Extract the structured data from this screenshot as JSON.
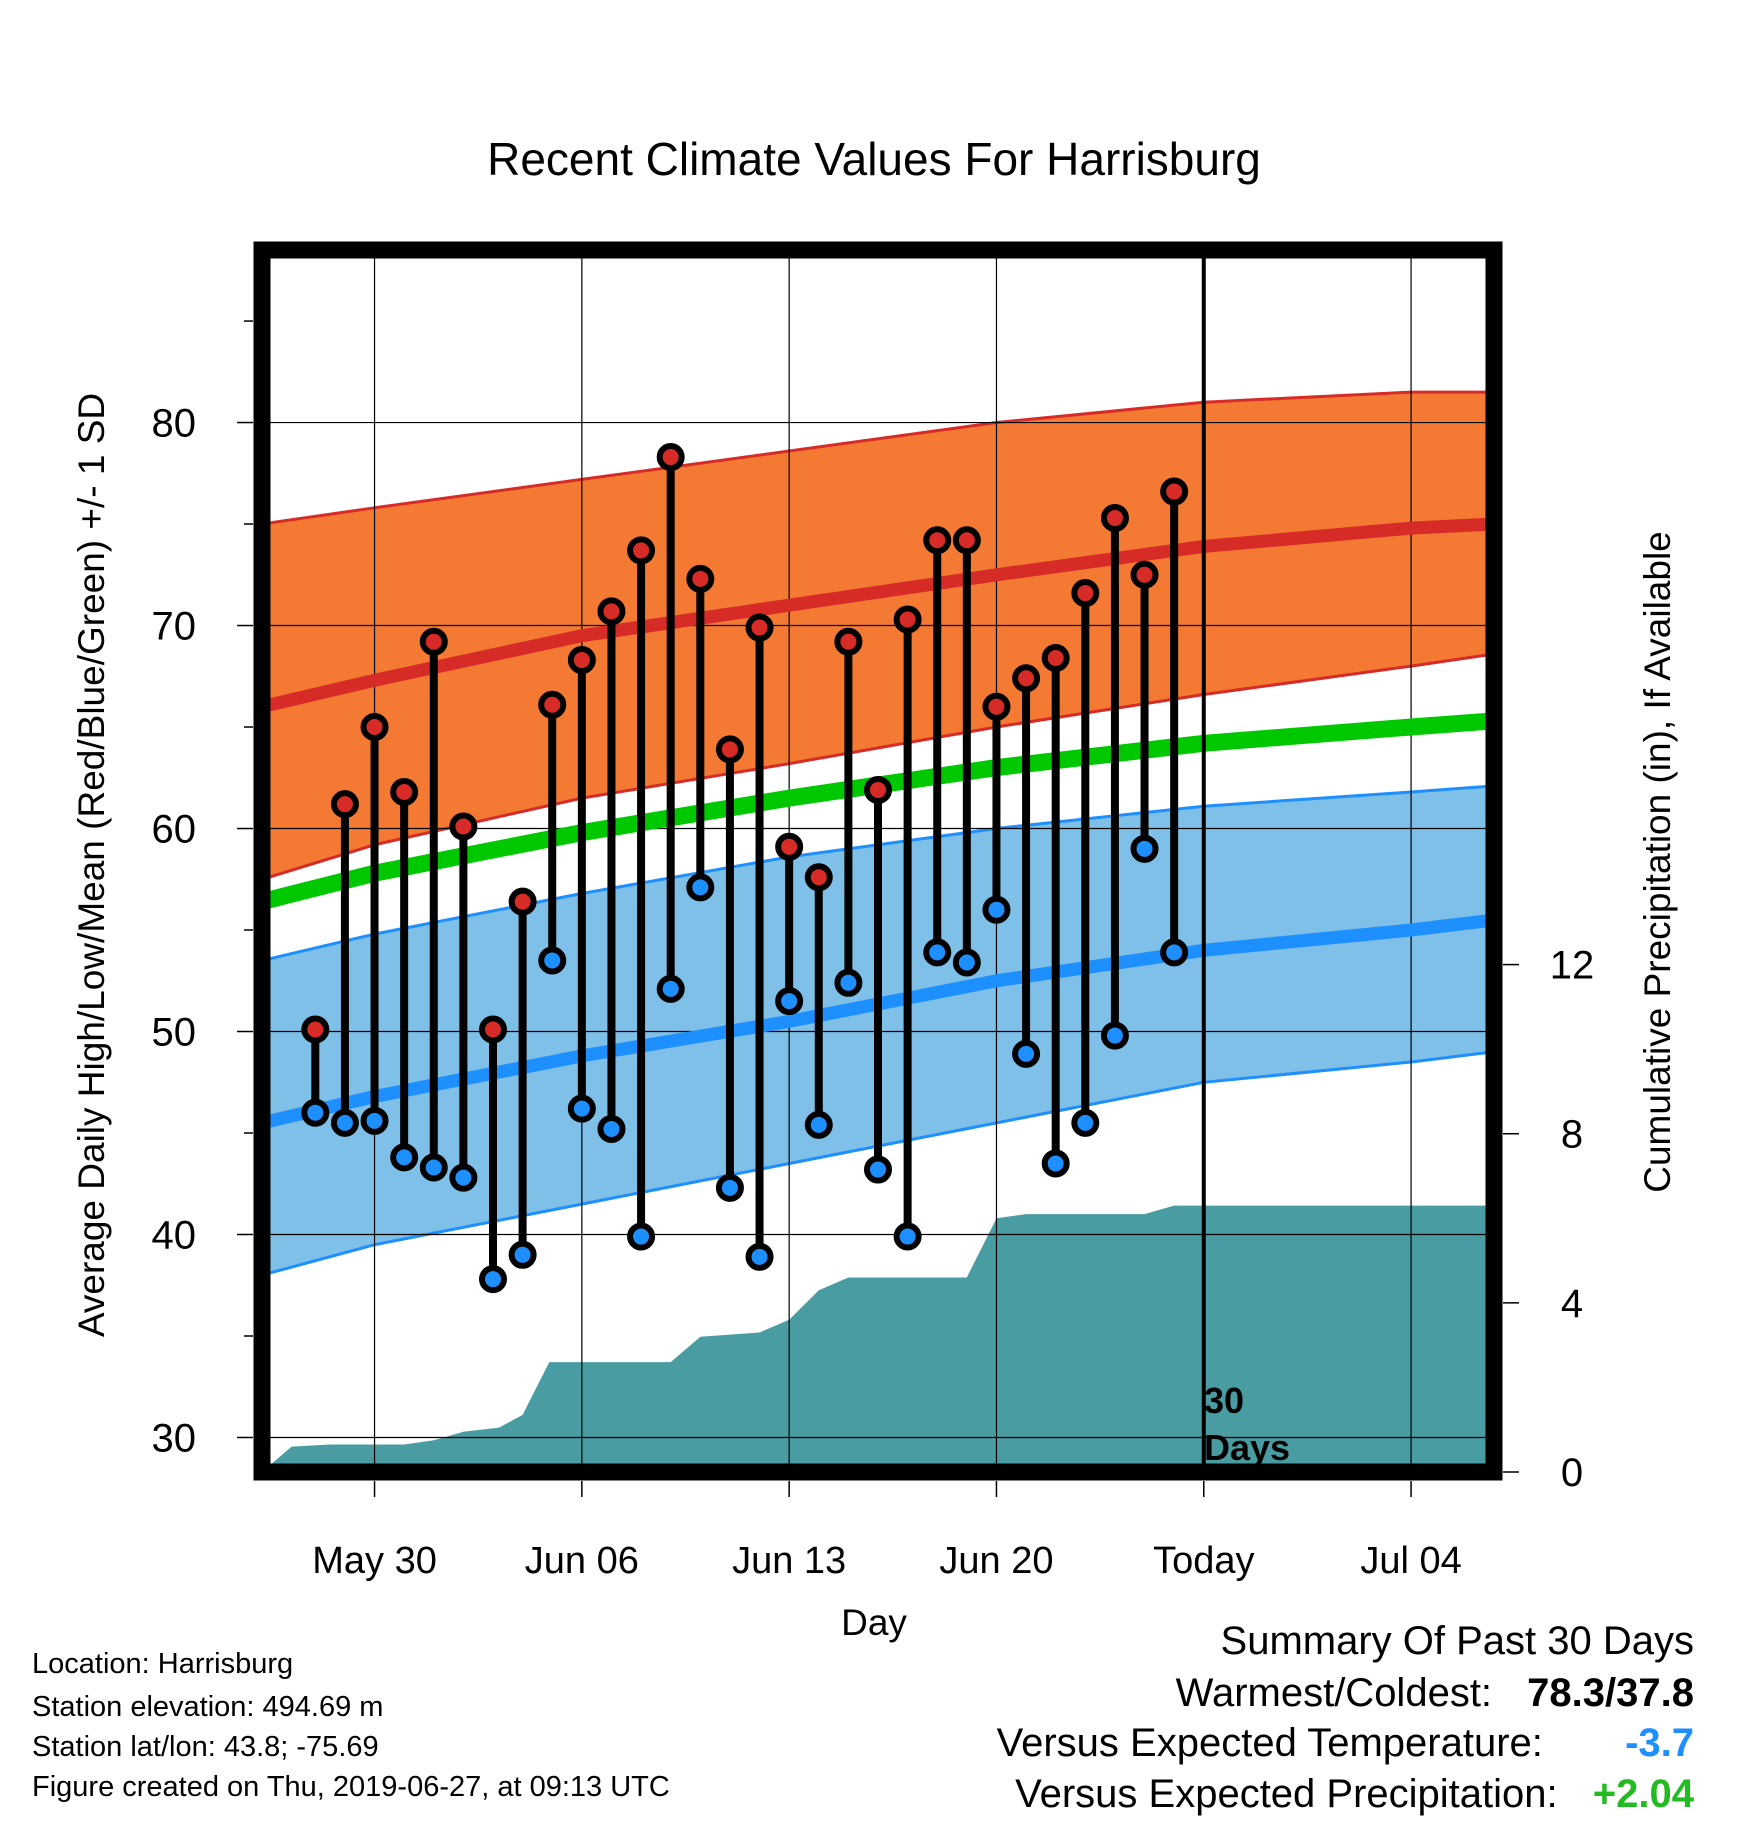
{
  "chart_data": {
    "type": "line",
    "title": "Recent Climate Values For Harrisburg",
    "xlabel": "Day",
    "ylabel_left": "Average Daily High/Low/Mean (Red/Blue/Green) +/- 1 SD",
    "ylabel_right": "Cumulative Precipitation (in), If Available",
    "x_day_range": [
      -3.8,
      37.8
    ],
    "x_tick_days": [
      0,
      7,
      14,
      21,
      28,
      35
    ],
    "x_tick_labels": [
      "May 30",
      "Jun 06",
      "Jun 13",
      "Jun 20",
      "Today",
      "Jul 04"
    ],
    "ylim_left": [
      28.3,
      88.5
    ],
    "yticks_left": [
      30,
      40,
      50,
      60,
      70,
      80
    ],
    "ylim_right": [
      0,
      28.9
    ],
    "yticks_right": [
      0,
      4,
      8,
      12
    ],
    "today_marker_label_line1": "30",
    "today_marker_label_line2": "Days",
    "normals": {
      "x_days": [
        -3.8,
        0,
        7,
        14,
        21,
        28,
        35,
        37.8
      ],
      "high_mean": [
        66.0,
        67.3,
        69.5,
        71.0,
        72.5,
        73.9,
        74.8,
        75.0
      ],
      "high_plus_sd": [
        75.0,
        75.8,
        77.2,
        78.6,
        80.0,
        81.0,
        81.5,
        81.5
      ],
      "high_minus_sd": [
        57.5,
        59.2,
        61.5,
        63.2,
        65.0,
        66.6,
        68.0,
        68.6
      ],
      "mean": [
        56.4,
        57.8,
        59.8,
        61.5,
        63.0,
        64.2,
        65.0,
        65.3
      ],
      "low_mean": [
        45.5,
        46.8,
        48.8,
        50.5,
        52.5,
        54.0,
        55.0,
        55.5
      ],
      "low_plus_sd": [
        53.5,
        54.8,
        56.8,
        58.6,
        60.0,
        61.1,
        61.8,
        62.1
      ],
      "low_minus_sd": [
        38.0,
        39.5,
        41.5,
        43.5,
        45.5,
        47.5,
        48.5,
        49.0
      ]
    },
    "observations": {
      "x_days": [
        -2,
        -1,
        0,
        1,
        2,
        3,
        4,
        5,
        6,
        7,
        8,
        9,
        10,
        11,
        12,
        13,
        14,
        15,
        16,
        17,
        18,
        19,
        20,
        21,
        22,
        23,
        24,
        25,
        26,
        27
      ],
      "highs": [
        50.1,
        61.2,
        65.0,
        61.8,
        69.2,
        60.1,
        50.1,
        56.4,
        66.1,
        68.3,
        70.7,
        73.7,
        78.3,
        72.3,
        63.9,
        69.9,
        59.1,
        57.6,
        69.2,
        61.9,
        70.3,
        74.2,
        74.2,
        66.0,
        67.4,
        68.4,
        71.6,
        75.3,
        72.5,
        76.6
      ],
      "lows": [
        46.0,
        45.5,
        45.6,
        43.8,
        43.3,
        42.8,
        37.8,
        39.0,
        53.5,
        46.2,
        45.2,
        39.9,
        52.1,
        57.1,
        42.3,
        38.9,
        51.5,
        45.4,
        52.4,
        43.2,
        39.9,
        53.9,
        53.4,
        56.0,
        48.9,
        43.5,
        45.5,
        49.8,
        59.0,
        53.9
      ]
    },
    "cumulative_precip": {
      "x_days": [
        -3.8,
        -2.8,
        -1.5,
        1.0,
        2.0,
        3.0,
        4.2,
        5.0,
        5.9,
        8.0,
        10.0,
        11.0,
        12.0,
        13.0,
        14.0,
        15.0,
        16.0,
        17.0,
        19.0,
        20.0,
        21.0,
        22.0,
        23.5,
        24.5,
        26.0,
        27.0,
        28.0,
        37.8
      ],
      "values": [
        0.0,
        0.6,
        0.65,
        0.65,
        0.75,
        0.95,
        1.05,
        1.35,
        2.6,
        2.6,
        2.6,
        3.2,
        3.25,
        3.3,
        3.6,
        4.3,
        4.6,
        4.6,
        4.6,
        4.6,
        6.0,
        6.1,
        6.1,
        6.1,
        6.1,
        6.3,
        6.3,
        6.3
      ]
    },
    "grid": true,
    "colors": {
      "high_band": "#f47a34",
      "high_band_edge": "#d62b27",
      "high_mean": "#d62b27",
      "mean": "#00c800",
      "low_band": "#7fc0e8",
      "low_band_edge": "#1e8fff",
      "low_mean": "#1e8fff",
      "precip": "#4a9ca3",
      "high_dot": "#d62b27",
      "low_dot": "#1e8fff"
    }
  },
  "info": {
    "location": "Location: Harrisburg",
    "elevation": "Station elevation: 494.69 m",
    "latlon": "Station lat/lon: 43.8; -75.69",
    "created": "Figure created on Thu, 2019-06-27, at 09:13 UTC"
  },
  "summary": {
    "title": "Summary Of Past 30 Days",
    "warm_cold_label": "Warmest/Coldest:",
    "warm_cold_value": "78.3/37.8",
    "temp_label": "Versus Expected Temperature:",
    "temp_value": "-3.7",
    "temp_color": "#1e8fff",
    "precip_label": "Versus Expected Precipitation:",
    "precip_value": "+2.04",
    "precip_color": "#22bb22"
  }
}
